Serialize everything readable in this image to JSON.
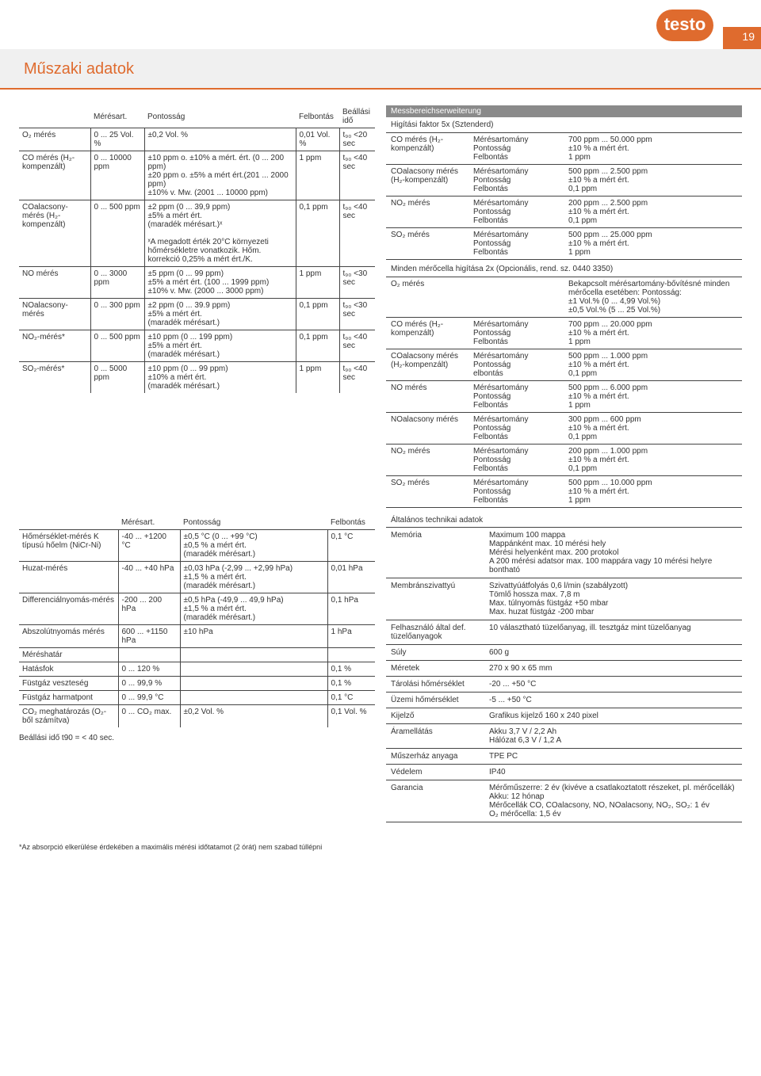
{
  "page_number": "19",
  "logo_text": "testo",
  "section_title": "Műszaki adatok",
  "colors": {
    "accent": "#df6b2e",
    "grey_bar": "#8a8a8a",
    "text": "#333333",
    "border": "#444444"
  },
  "main_table": {
    "headers": [
      "",
      "Mérésart.",
      "Pontosság",
      "Felbontás",
      "Beállási idő"
    ],
    "rows": [
      {
        "label": "O₂ mérés",
        "range": "0 ... 25 Vol. %",
        "acc": "±0,2 Vol. %",
        "res": "0,01 Vol. %",
        "time": "t₉₀ <20 sec"
      },
      {
        "label": "CO mérés (H₂-kompenzált)",
        "range": "0 ... 10000 ppm",
        "acc": "±10 ppm o. ±10% a mért. ért. (0 ... 200 ppm)\n±20 ppm o. ±5% a mért ért.(201 ... 2000 ppm)\n±10% v. Mw. (2001 ... 10000 ppm)",
        "res": "1 ppm",
        "time": "t₉₀ <40 sec"
      },
      {
        "label": "COalacsony-mérés (H₂-kompenzált)",
        "range": "0 ... 500 ppm",
        "acc": "±2 ppm (0 ... 39,9 ppm)\n±5% a mért ért.\n(maradék mérésart.)ˣ\n\nˣA megadott érték 20°C környezeti hőmérsékletre vonatkozik. Hőm. korrekció 0,25% a mért ért./K.",
        "res": "0,1 ppm",
        "time": "t₉₀ <40 sec"
      },
      {
        "label": "NO mérés",
        "range": "0 ... 3000 ppm",
        "acc": "±5 ppm (0 ... 99 ppm)\n±5% a mért ért. (100 ... 1999 ppm)\n±10% v. Mw. (2000 ... 3000 ppm)",
        "res": "1 ppm",
        "time": "t₉₀ <30 sec"
      },
      {
        "label": "NOalacsony-mérés",
        "range": "0 ... 300 ppm",
        "acc": "±2 ppm (0 ... 39.9 ppm)\n±5% a mért ért.\n(maradék mérésart.)",
        "res": "0,1 ppm",
        "time": "t₉₀ <30 sec"
      },
      {
        "label": "NO₂-mérés*",
        "range": "0 ... 500 ppm",
        "acc": "±10 ppm (0 ... 199 ppm)\n±5% a mért ért.\n(maradék mérésart.)",
        "res": "0,1 ppm",
        "time": "t₉₀ <40 sec"
      },
      {
        "label": "SO₂-mérés*",
        "range": "0 ... 5000 ppm",
        "acc": "±10 ppm (0 ... 99 ppm)\n±10% a mért ért.\n(maradék mérésart.)",
        "res": "1 ppm",
        "time": "t₉₀ <40 sec"
      }
    ]
  },
  "ext_bar": "Messbereichserweiterung",
  "ext_sub": "Higítási faktor 5x (Sztenderd)",
  "ext_rows": [
    {
      "l": "CO mérés (H₂-kompenzált)",
      "p": "Mérésartomány\nPontosság\nFelbontás",
      "v": "700 ppm ... 50.000 ppm\n±10 % a mért ért.\n1 ppm"
    },
    {
      "l": "COalacsony mérés (H₂-kompenzált)",
      "p": "Mérésartomány\nPontosság\nFelbontás",
      "v": "500 ppm ... 2.500 ppm\n±10 % a mért ért.\n0,1 ppm"
    },
    {
      "l": "NO₂ mérés",
      "p": "Mérésartomány\nPontosság\nFelbontás",
      "v": "200 ppm ... 2.500 ppm\n±10 % a mért ért.\n0,1 ppm"
    },
    {
      "l": "SO₂ mérés",
      "p": "Mérésartomány\nPontosság\nFelbontás",
      "v": "500 ppm ... 25.000 ppm\n±10 % a mért ért.\n1 ppm"
    }
  ],
  "ext_note": "Minden mérőcella higítása 2x (Opcionális, rend. sz. 0440 3350)",
  "ext_rows2": [
    {
      "l": "O₂ mérés",
      "p": "",
      "v": "Bekapcsolt mérésartomány-bővítésné minden mérőcella esetében: Pontosság:\n±1 Vol.% (0 ... 4,99 Vol.%)\n±0,5 Vol.% (5 ... 25 Vol.%)"
    },
    {
      "l": "CO mérés (H₂-kompenzált)",
      "p": "Mérésartomány\nPontosság\nFelbontás",
      "v": "700 ppm ... 20.000 ppm\n±10 % a mért ért.\n1 ppm"
    },
    {
      "l": "COalacsony mérés (H₂-kompenzált)",
      "p": "Mérésartomány\nPontosság\nelbontás",
      "v": "500 ppm ... 1.000 ppm\n±10 % a mért ért.\n0,1 ppm"
    },
    {
      "l": "NO mérés",
      "p": "Mérésartomány\nPontosság\nFelbontás",
      "v": "500 ppm ... 6.000 ppm\n±10 % a mért ért.\n1 ppm"
    },
    {
      "l": "NOalacsony mérés",
      "p": "Mérésartomány\nPontosság\nFelbontás",
      "v": "300 ppm ... 600 ppm\n±10 % a mért ért.\n0,1 ppm"
    },
    {
      "l": "NO₂ mérés",
      "p": "Mérésartomány\nPontosság\nFelbontás",
      "v": "200 ppm ... 1.000 ppm\n±10 % a mért ért.\n0,1 ppm"
    },
    {
      "l": "SO₂ mérés",
      "p": "Mérésartomány\nPontosság\nFelbontás",
      "v": "500 ppm ... 10.000 ppm\n±10 % a mért ért.\n1 ppm"
    }
  ],
  "second_table": {
    "headers": [
      "",
      "Mérésart.",
      "Pontosság",
      "Felbontás"
    ],
    "rows": [
      {
        "label": "Hőmérséklet-mérés K típusú hőelm (NiCr-Ni)",
        "range": "-40 ... +1200 °C",
        "acc": "±0,5 °C (0 ... +99 °C)\n±0,5 % a mért ért.\n(maradék mérésart.)",
        "res": "0,1 °C"
      },
      {
        "label": "Huzat-mérés",
        "range": "-40 ... +40 hPa",
        "acc": "±0,03 hPa (-2,99 ... +2,99 hPa)\n±1,5 % a mért ért.\n(maradék mérésart.)",
        "res": "0,01 hPa"
      },
      {
        "label": "Differenciálnyomás-mérés",
        "range": "-200 ... 200 hPa",
        "acc": "±0,5 hPa (-49,9 ... 49,9 hPa)\n±1,5 %  a mért ért.\n(maradék mérésart.)",
        "res": "0,1 hPa"
      },
      {
        "label": "Abszolútnyomás mérés",
        "range": "600 ... +1150 hPa",
        "acc": "±10 hPa",
        "res": "1 hPa"
      },
      {
        "label": "Méréshatár",
        "range": "",
        "acc": "",
        "res": ""
      },
      {
        "label": "Hatásfok",
        "range": "0 ... 120 %",
        "acc": "",
        "res": "0,1 %"
      },
      {
        "label": "Füstgáz veszteség",
        "range": "0 ... 99,9 %",
        "acc": "",
        "res": "0,1 %"
      },
      {
        "label": "Füstgáz harmatpont",
        "range": "0 ... 99,9 °C",
        "acc": "",
        "res": "0,1 °C"
      },
      {
        "label": "CO₂ meghatározás (O₂-ből számítva)",
        "range": "0 ... CO₂ max.",
        "acc": "±0,2 Vol. %",
        "res": "0,1 Vol. %"
      }
    ],
    "tail": "Beállási idő t90 = < 40 sec."
  },
  "tech_title": "Általános technikai adatok",
  "tech_rows": [
    {
      "l": "Memória",
      "v": "Maximum              100 mappa\nMappánként           max. 10 mérési hely\nMérési helyenként    max. 200 protokol\nA 200 mérési adatsor max. 100 mappára vagy 10 mérési helyre bontható"
    },
    {
      "l": "Membránszivattyú",
      "v": "Szivattyúátfolyás    0,6 l/min (szabályzott)\nTömlő hossza         max. 7,8 m\nMax. túlnyomás füstgáz +50 mbar\nMax. huzat füstgáz -200 mbar"
    },
    {
      "l": "Felhasználó által def. tüzelőanyagok",
      "v": "10 választható tüzelőanyag, ill. tesztgáz mint tüzelőanyag"
    },
    {
      "l": "Súly",
      "v": "600 g"
    },
    {
      "l": "Méretek",
      "v": "270 x 90 x 65 mm"
    },
    {
      "l": "Tárolási hőmérséklet",
      "v": "-20 ... +50 °C"
    },
    {
      "l": "Üzemi hőmérséklet",
      "v": "-5 ... +50 °C"
    },
    {
      "l": "Kijelző",
      "v": "Grafikus kijelző 160 x 240 pixel"
    },
    {
      "l": "Áramellátás",
      "v": "Akku 3,7 V / 2,2 Ah\nHálózat 6,3 V / 1,2 A"
    },
    {
      "l": "Műszerház anyaga",
      "v": "TPE PC"
    },
    {
      "l": "Védelem",
      "v": "IP40"
    },
    {
      "l": "Garancia",
      "v": "Mérőműszerre: 2 év (kivéve a csatlakoztatott részeket, pl. mérőcellák)\nAkku: 12 hónap\nMérőcellák CO, COalacsony, NO, NOalacsony, NO₂, SO₂: 1 év\nO₂ mérőcella: 1,5 év"
    }
  ],
  "footnote": "*Az absorpció elkerülése érdekében a maximális mérési időtatamot (2 órát) nem szabad túllépni"
}
